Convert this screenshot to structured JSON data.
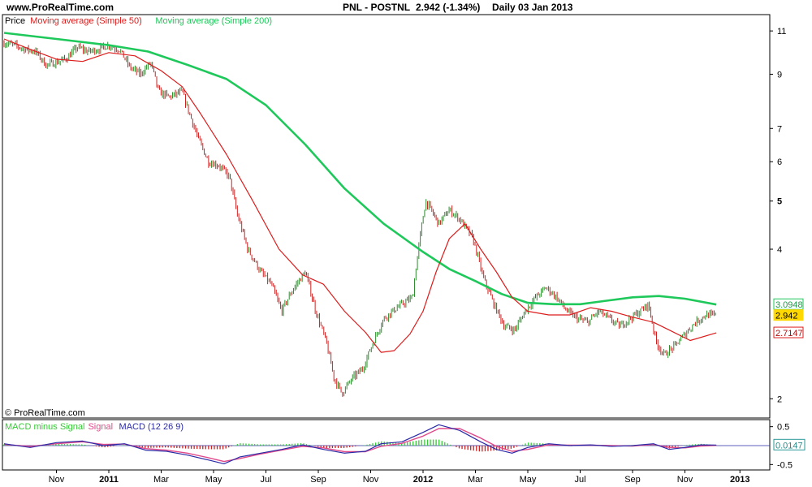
{
  "header": {
    "site": "www.ProRealTime.com",
    "ticker": "PNL - POSTNL",
    "quote": "2.942  (-1.34%)",
    "period": "Daily  03 Jan 2013"
  },
  "watermark": "© ProRealTime.com",
  "colors": {
    "candle_up": "#2e8b2e",
    "candle_down": "#cc2222",
    "ma50": "#dd1c1c",
    "ma200": "#1ec85a",
    "macd": "#2a2aa8",
    "signal": "#e04a8a",
    "hist_up": "#33cc33",
    "hist_down": "#cc2222",
    "price_tag": "#ffd800"
  },
  "chart_data": [
    {
      "type": "line",
      "id": "price",
      "legend": [
        {
          "label": "Price",
          "color": "#000000"
        },
        {
          "label": "Moving average (Simple 50)",
          "color": "#dd1c1c"
        },
        {
          "label": "Moving average (Simple 200)",
          "color": "#1ec85a"
        }
      ],
      "y_scale": "log",
      "ylim": [
        1.85,
        11.6
      ],
      "y_ticks": [
        {
          "v": 11,
          "label": "11",
          "bold": false
        },
        {
          "v": 9,
          "label": "9",
          "bold": false
        },
        {
          "v": 7,
          "label": "7",
          "bold": false
        },
        {
          "v": 6,
          "label": "6",
          "bold": false
        },
        {
          "v": 5,
          "label": "5",
          "bold": true
        },
        {
          "v": 4,
          "label": "4",
          "bold": false
        },
        {
          "v": 2,
          "label": "2",
          "bold": false
        }
      ],
      "value_tags": [
        {
          "v": 3.0948,
          "label": "3.0948",
          "kind": "ma200"
        },
        {
          "v": 2.942,
          "label": "2.942",
          "kind": "price"
        },
        {
          "v": 2.7147,
          "label": "2.7147",
          "kind": "ma50"
        }
      ],
      "x_ticks": [
        {
          "label": "Nov",
          "bold": false
        },
        {
          "label": "2011",
          "bold": true
        },
        {
          "label": "Mar",
          "bold": false
        },
        {
          "label": "May",
          "bold": false
        },
        {
          "label": "Jul",
          "bold": false
        },
        {
          "label": "Sep",
          "bold": false
        },
        {
          "label": "Nov",
          "bold": false
        },
        {
          "label": "2012",
          "bold": true
        },
        {
          "label": "Mar",
          "bold": false
        },
        {
          "label": "May",
          "bold": false
        },
        {
          "label": "Jul",
          "bold": false
        },
        {
          "label": "Sep",
          "bold": false
        },
        {
          "label": "Nov",
          "bold": false
        },
        {
          "label": "2013",
          "bold": true
        }
      ],
      "x_tick_months": [
        0,
        2,
        4,
        6,
        8,
        10,
        12,
        14,
        16,
        18,
        20,
        22,
        24,
        26.1
      ],
      "x_month_range": [
        -2.0,
        26.0
      ],
      "price_path": [
        [
          -2.0,
          10.4
        ],
        [
          -1.6,
          10.3
        ],
        [
          -1.2,
          10.1
        ],
        [
          -0.8,
          10.0
        ],
        [
          -0.4,
          9.4
        ],
        [
          0.0,
          9.5
        ],
        [
          0.4,
          9.7
        ],
        [
          0.8,
          10.2
        ],
        [
          1.2,
          10.0
        ],
        [
          1.6,
          10.1
        ],
        [
          2.0,
          10.3
        ],
        [
          2.4,
          10.1
        ],
        [
          2.8,
          9.3
        ],
        [
          3.2,
          9.0
        ],
        [
          3.6,
          9.5
        ],
        [
          3.9,
          8.3
        ],
        [
          4.3,
          8.1
        ],
        [
          4.8,
          8.3
        ],
        [
          5.0,
          7.7
        ],
        [
          5.4,
          6.7
        ],
        [
          5.8,
          6.0
        ],
        [
          6.2,
          5.9
        ],
        [
          6.6,
          5.6
        ],
        [
          6.9,
          4.7
        ],
        [
          7.3,
          4.0
        ],
        [
          7.8,
          3.6
        ],
        [
          8.2,
          3.4
        ],
        [
          8.6,
          3.0
        ],
        [
          9.0,
          3.3
        ],
        [
          9.5,
          3.6
        ],
        [
          9.9,
          3.0
        ],
        [
          10.3,
          2.6
        ],
        [
          10.6,
          2.2
        ],
        [
          10.9,
          2.05
        ],
        [
          11.3,
          2.2
        ],
        [
          11.7,
          2.3
        ],
        [
          12.1,
          2.6
        ],
        [
          12.5,
          2.9
        ],
        [
          13.0,
          3.05
        ],
        [
          13.6,
          3.2
        ],
        [
          14.1,
          5.0
        ],
        [
          14.6,
          4.5
        ],
        [
          15.0,
          4.8
        ],
        [
          15.4,
          4.6
        ],
        [
          15.9,
          4.2
        ],
        [
          16.3,
          3.5
        ],
        [
          16.7,
          3.1
        ],
        [
          17.1,
          2.8
        ],
        [
          17.5,
          2.75
        ],
        [
          17.9,
          3.0
        ],
        [
          18.3,
          3.2
        ],
        [
          18.7,
          3.35
        ],
        [
          19.1,
          3.2
        ],
        [
          19.5,
          3.0
        ],
        [
          19.9,
          2.9
        ],
        [
          20.3,
          2.85
        ],
        [
          20.7,
          3.0
        ],
        [
          21.1,
          2.9
        ],
        [
          21.5,
          2.8
        ],
        [
          21.9,
          2.9
        ],
        [
          22.3,
          3.0
        ],
        [
          22.6,
          3.1
        ],
        [
          22.9,
          2.6
        ],
        [
          23.2,
          2.45
        ],
        [
          23.6,
          2.55
        ],
        [
          24.0,
          2.7
        ],
        [
          24.4,
          2.85
        ],
        [
          24.8,
          2.95
        ],
        [
          25.2,
          2.942
        ]
      ],
      "ma50_path": [
        [
          -2.0,
          10.6
        ],
        [
          -1.0,
          10.1
        ],
        [
          0.0,
          9.65
        ],
        [
          1.0,
          9.55
        ],
        [
          2.0,
          9.95
        ],
        [
          3.0,
          9.8
        ],
        [
          4.0,
          9.15
        ],
        [
          4.8,
          8.5
        ],
        [
          5.5,
          7.5
        ],
        [
          6.5,
          6.2
        ],
        [
          7.5,
          5.0
        ],
        [
          8.5,
          4.0
        ],
        [
          9.4,
          3.55
        ],
        [
          10.2,
          3.4
        ],
        [
          11.0,
          3.0
        ],
        [
          11.8,
          2.72
        ],
        [
          12.4,
          2.48
        ],
        [
          12.9,
          2.5
        ],
        [
          13.5,
          2.7
        ],
        [
          14.0,
          3.0
        ],
        [
          14.5,
          3.6
        ],
        [
          15.0,
          4.2
        ],
        [
          15.6,
          4.5
        ],
        [
          16.2,
          4.0
        ],
        [
          16.8,
          3.6
        ],
        [
          17.4,
          3.2
        ],
        [
          18.0,
          3.0
        ],
        [
          18.8,
          2.95
        ],
        [
          19.6,
          2.95
        ],
        [
          20.4,
          3.05
        ],
        [
          21.2,
          3.0
        ],
        [
          22.0,
          2.92
        ],
        [
          22.8,
          2.85
        ],
        [
          23.4,
          2.75
        ],
        [
          24.2,
          2.62
        ],
        [
          25.2,
          2.7147
        ]
      ],
      "ma200_path": [
        [
          -2.0,
          10.9
        ],
        [
          0.0,
          10.6
        ],
        [
          2.0,
          10.3
        ],
        [
          3.5,
          10.0
        ],
        [
          5.0,
          9.4
        ],
        [
          6.5,
          8.8
        ],
        [
          8.0,
          7.8
        ],
        [
          9.5,
          6.5
        ],
        [
          11.0,
          5.3
        ],
        [
          12.5,
          4.5
        ],
        [
          14.0,
          3.95
        ],
        [
          15.0,
          3.65
        ],
        [
          16.0,
          3.45
        ],
        [
          17.0,
          3.25
        ],
        [
          18.0,
          3.12
        ],
        [
          19.0,
          3.1
        ],
        [
          20.0,
          3.1
        ],
        [
          21.0,
          3.15
        ],
        [
          22.0,
          3.2
        ],
        [
          23.0,
          3.22
        ],
        [
          24.0,
          3.18
        ],
        [
          25.2,
          3.0948
        ]
      ]
    },
    {
      "type": "area",
      "id": "macd",
      "legend": [
        {
          "label": "MACD minus Signal",
          "color": "#33cc33"
        },
        {
          "label": "Signal",
          "color": "#e04a8a"
        },
        {
          "label": "MACD (12 26 9)",
          "color": "#2a2aa8"
        }
      ],
      "ylim": [
        -0.6,
        0.6
      ],
      "y_ticks": [
        {
          "v": 0.5,
          "label": "0.5"
        },
        {
          "v": -0.5,
          "label": "-0.5"
        }
      ],
      "value_tags": [
        {
          "v": 0.0147,
          "label": "0.0147"
        }
      ],
      "macd_path": [
        [
          -2.0,
          0.05
        ],
        [
          -1.0,
          -0.05
        ],
        [
          0.0,
          0.08
        ],
        [
          1.0,
          0.12
        ],
        [
          1.8,
          0.0
        ],
        [
          2.6,
          0.05
        ],
        [
          3.4,
          -0.12
        ],
        [
          4.2,
          -0.15
        ],
        [
          5.0,
          -0.25
        ],
        [
          5.8,
          -0.38
        ],
        [
          6.4,
          -0.48
        ],
        [
          7.0,
          -0.3
        ],
        [
          7.8,
          -0.2
        ],
        [
          8.6,
          -0.1
        ],
        [
          9.4,
          0.02
        ],
        [
          10.2,
          -0.1
        ],
        [
          11.0,
          -0.2
        ],
        [
          11.8,
          -0.15
        ],
        [
          12.4,
          0.05
        ],
        [
          13.2,
          0.1
        ],
        [
          14.0,
          0.35
        ],
        [
          14.6,
          0.55
        ],
        [
          15.4,
          0.4
        ],
        [
          16.2,
          0.1
        ],
        [
          16.8,
          -0.1
        ],
        [
          17.4,
          -0.2
        ],
        [
          18.0,
          -0.05
        ],
        [
          18.8,
          0.05
        ],
        [
          19.6,
          0.0
        ],
        [
          20.4,
          0.02
        ],
        [
          21.2,
          -0.02
        ],
        [
          22.0,
          0.0
        ],
        [
          22.8,
          0.05
        ],
        [
          23.4,
          -0.1
        ],
        [
          24.0,
          -0.05
        ],
        [
          24.6,
          0.02
        ],
        [
          25.2,
          0.0147
        ]
      ],
      "signal_path": [
        [
          -2.0,
          0.03
        ],
        [
          -1.0,
          -0.02
        ],
        [
          0.0,
          0.05
        ],
        [
          1.0,
          0.1
        ],
        [
          1.8,
          0.03
        ],
        [
          2.6,
          0.04
        ],
        [
          3.4,
          -0.08
        ],
        [
          4.2,
          -0.12
        ],
        [
          5.0,
          -0.2
        ],
        [
          5.8,
          -0.32
        ],
        [
          6.4,
          -0.42
        ],
        [
          7.0,
          -0.34
        ],
        [
          7.8,
          -0.22
        ],
        [
          8.6,
          -0.12
        ],
        [
          9.4,
          -0.02
        ],
        [
          10.2,
          -0.06
        ],
        [
          11.0,
          -0.16
        ],
        [
          11.8,
          -0.16
        ],
        [
          12.4,
          -0.02
        ],
        [
          13.2,
          0.06
        ],
        [
          14.0,
          0.25
        ],
        [
          14.6,
          0.45
        ],
        [
          15.4,
          0.45
        ],
        [
          16.2,
          0.2
        ],
        [
          16.8,
          -0.02
        ],
        [
          17.4,
          -0.15
        ],
        [
          18.0,
          -0.1
        ],
        [
          18.8,
          0.02
        ],
        [
          19.6,
          0.01
        ],
        [
          20.4,
          0.01
        ],
        [
          21.2,
          0.0
        ],
        [
          22.0,
          -0.01
        ],
        [
          22.8,
          0.03
        ],
        [
          23.4,
          -0.05
        ],
        [
          24.0,
          -0.06
        ],
        [
          24.6,
          -0.01
        ],
        [
          25.2,
          0.005
        ]
      ]
    }
  ]
}
